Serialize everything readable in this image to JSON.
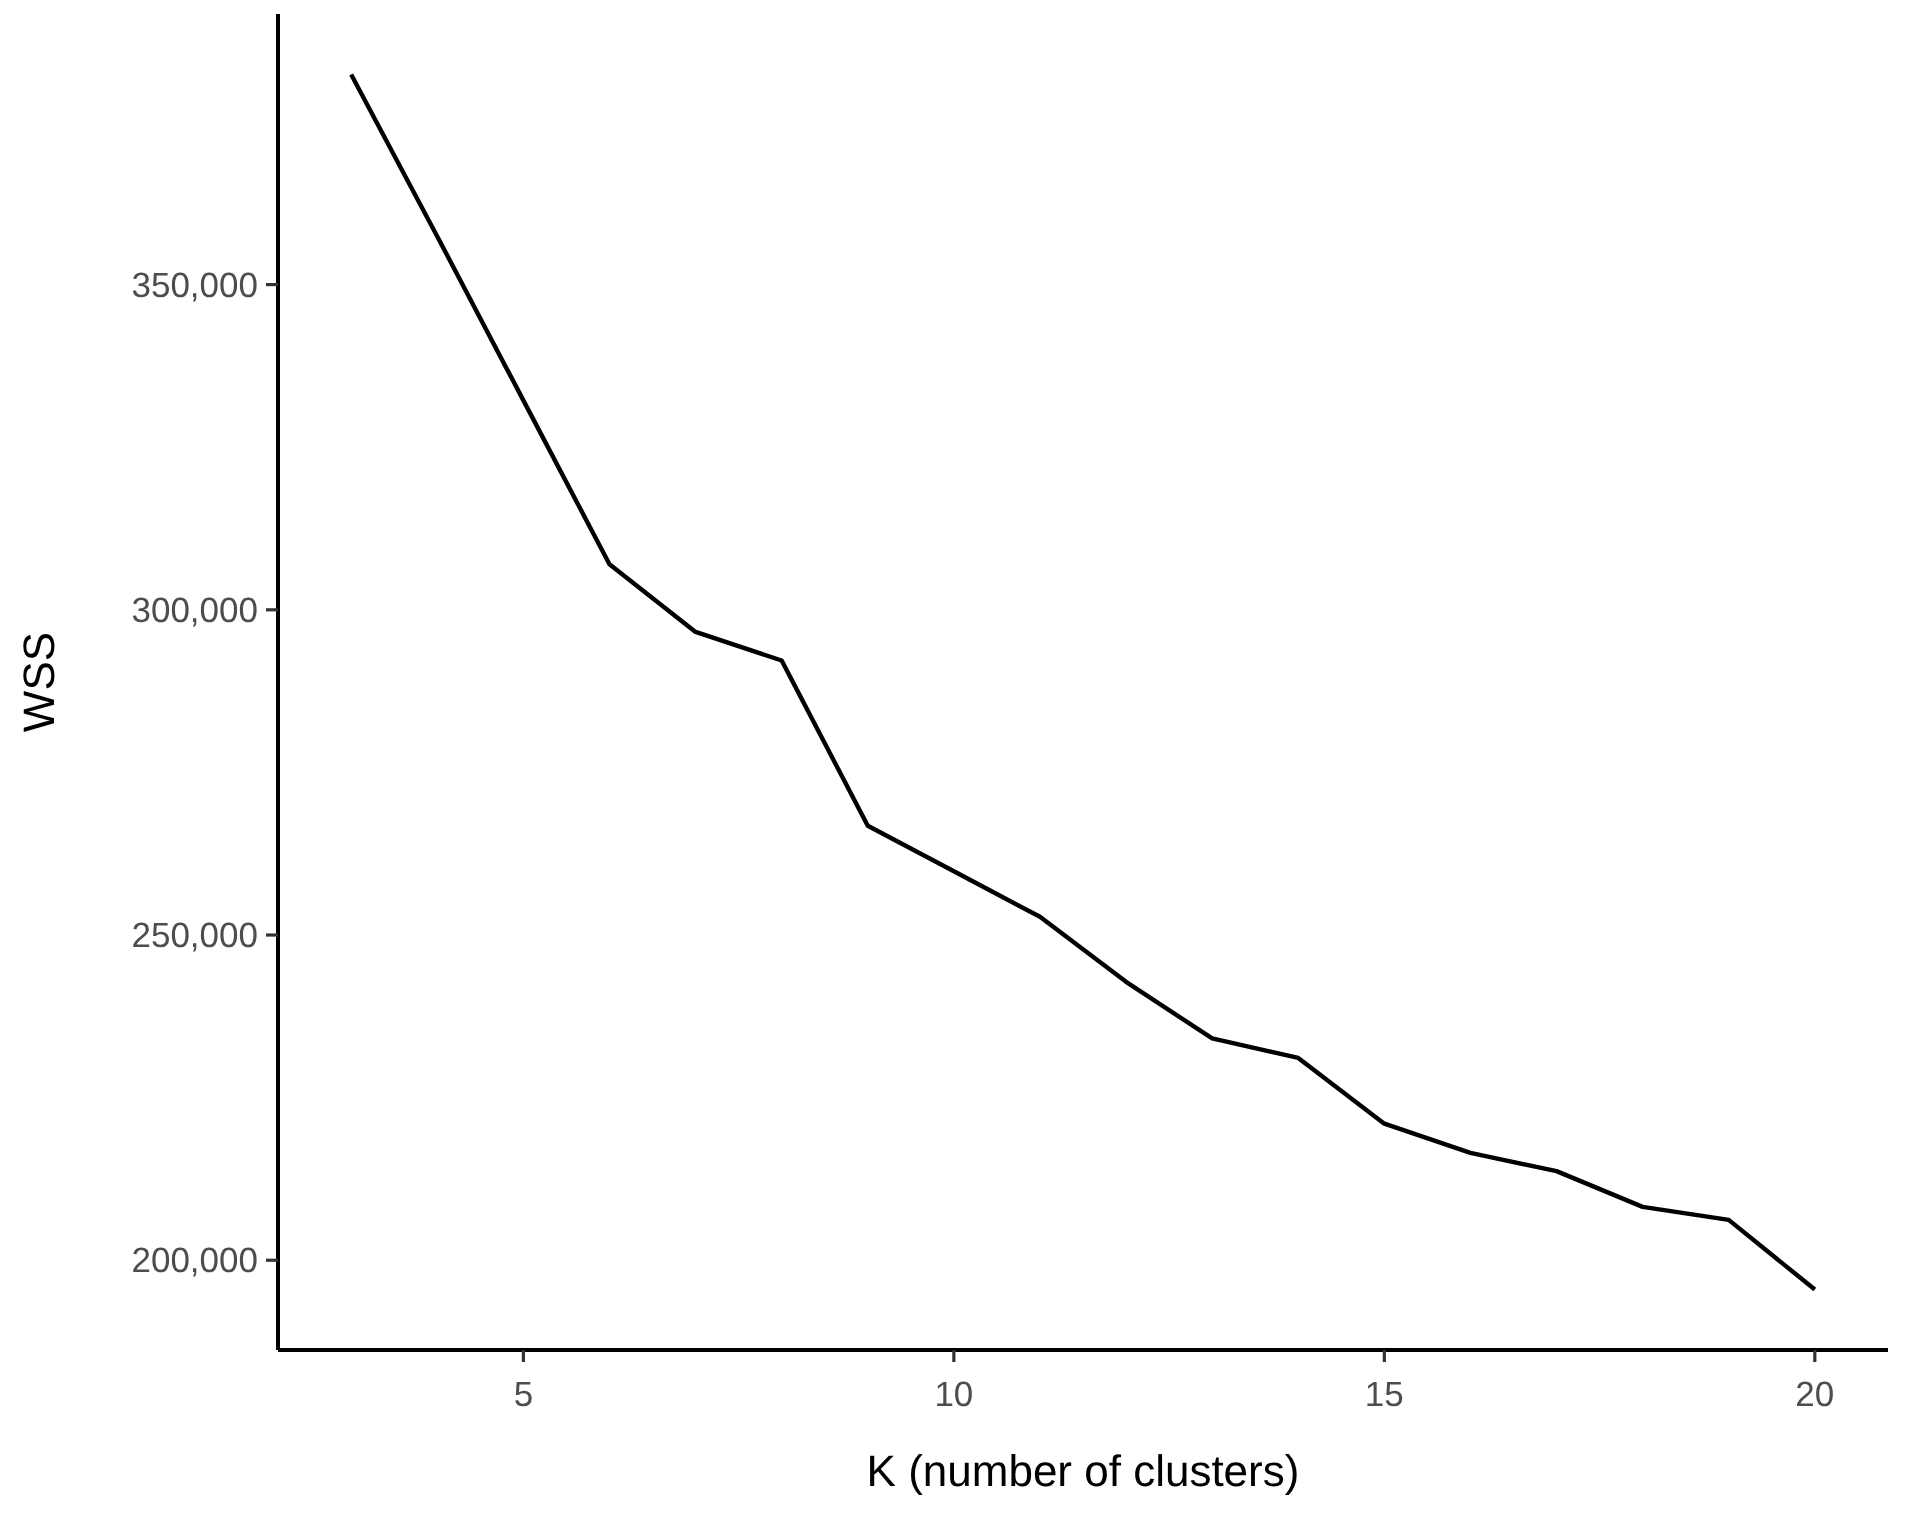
{
  "chart_data": {
    "type": "line",
    "xlabel": "K (number of clusters)",
    "ylabel": "WSS",
    "x": [
      3,
      4,
      5,
      6,
      7,
      8,
      9,
      10,
      11,
      12,
      13,
      14,
      15,
      16,
      17,
      18,
      19,
      20
    ],
    "series": [
      {
        "color": "#000000",
        "values": [
          382300,
          357400,
          332200,
          307000,
          296600,
          292200,
          266800,
          259800,
          252800,
          242800,
          234100,
          231100,
          221000,
          216500,
          213700,
          208200,
          206200,
          195500
        ]
      }
    ],
    "xlim": [
      2.15,
      20.85
    ],
    "xticks": [
      5,
      10,
      15,
      20
    ],
    "ylim": [
      186200,
      391600
    ],
    "yticks": [
      {
        "value": 200000,
        "label": "200,000"
      },
      {
        "value": 250000,
        "label": "250,000"
      },
      {
        "value": 300000,
        "label": "300,000"
      },
      {
        "value": 350000,
        "label": "350,000"
      }
    ],
    "grid": false,
    "marker": "none",
    "line_style": "solid"
  }
}
